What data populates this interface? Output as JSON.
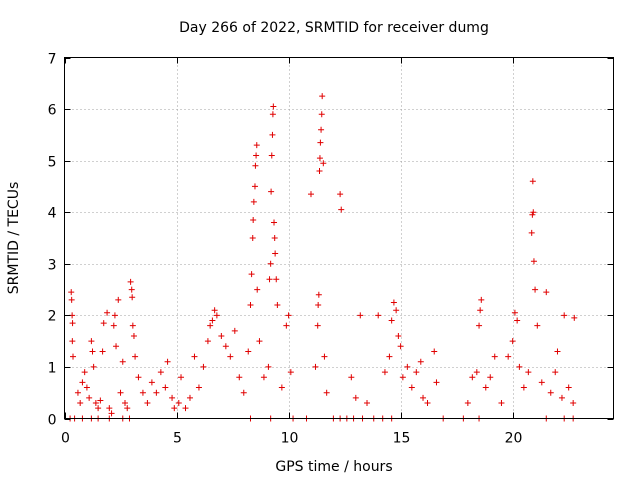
{
  "chart_data": {
    "type": "scatter",
    "title": "Day 266 of 2022, SRMTID for receiver dumg",
    "xlabel": "GPS time / hours",
    "ylabel": "SRMTID / TECUs",
    "xlim": [
      0,
      24.5
    ],
    "ylim": [
      0,
      7
    ],
    "xticks": [
      0,
      5,
      10,
      15,
      20
    ],
    "yticks": [
      0,
      1,
      2,
      3,
      4,
      5,
      6,
      7
    ],
    "grid": true,
    "marker": "plus",
    "color": "#e00000",
    "series": [
      {
        "name": "SRMTID",
        "points": [
          [
            0.25,
            0.0
          ],
          [
            0.45,
            0.0
          ],
          [
            0.8,
            0.0
          ],
          [
            1.2,
            0.0
          ],
          [
            1.5,
            0.0
          ],
          [
            2.0,
            0.0
          ],
          [
            2.6,
            0.0
          ],
          [
            2.9,
            0.0
          ],
          [
            8.3,
            0.0
          ],
          [
            9.2,
            0.0
          ],
          [
            10.2,
            0.0
          ],
          [
            10.8,
            0.0
          ],
          [
            12.0,
            0.0
          ],
          [
            12.3,
            0.0
          ],
          [
            12.6,
            0.0
          ],
          [
            12.9,
            0.0
          ],
          [
            13.3,
            0.0
          ],
          [
            13.8,
            0.0
          ],
          [
            14.2,
            0.0
          ],
          [
            14.6,
            0.0
          ],
          [
            16.9,
            0.0
          ],
          [
            17.8,
            0.0
          ],
          [
            18.5,
            0.0
          ],
          [
            21.5,
            0.0
          ],
          [
            22.3,
            0.0
          ],
          [
            22.7,
            0.0
          ],
          [
            0.3,
            2.45
          ],
          [
            0.32,
            2.3
          ],
          [
            0.34,
            2.0
          ],
          [
            0.36,
            1.85
          ],
          [
            0.35,
            1.5
          ],
          [
            0.38,
            1.2
          ],
          [
            0.6,
            0.5
          ],
          [
            0.7,
            0.3
          ],
          [
            0.8,
            0.7
          ],
          [
            0.9,
            0.9
          ],
          [
            1.0,
            0.6
          ],
          [
            1.1,
            0.4
          ],
          [
            1.2,
            1.5
          ],
          [
            1.25,
            1.3
          ],
          [
            1.3,
            1.0
          ],
          [
            1.4,
            0.3
          ],
          [
            1.5,
            0.2
          ],
          [
            1.6,
            0.35
          ],
          [
            1.7,
            1.3
          ],
          [
            1.75,
            1.85
          ],
          [
            1.9,
            2.05
          ],
          [
            2.0,
            0.2
          ],
          [
            2.1,
            0.1
          ],
          [
            2.2,
            1.8
          ],
          [
            2.25,
            2.0
          ],
          [
            2.3,
            1.4
          ],
          [
            2.4,
            2.3
          ],
          [
            2.5,
            0.5
          ],
          [
            2.6,
            1.1
          ],
          [
            2.7,
            0.3
          ],
          [
            2.8,
            0.2
          ],
          [
            2.95,
            2.65
          ],
          [
            3.0,
            2.5
          ],
          [
            3.02,
            2.35
          ],
          [
            3.05,
            1.8
          ],
          [
            3.1,
            1.6
          ],
          [
            3.15,
            1.2
          ],
          [
            3.3,
            0.8
          ],
          [
            3.5,
            0.5
          ],
          [
            3.7,
            0.3
          ],
          [
            3.9,
            0.7
          ],
          [
            4.1,
            0.5
          ],
          [
            4.3,
            0.9
          ],
          [
            4.5,
            0.6
          ],
          [
            4.6,
            1.1
          ],
          [
            4.8,
            0.4
          ],
          [
            4.9,
            0.2
          ],
          [
            5.1,
            0.3
          ],
          [
            5.2,
            0.8
          ],
          [
            5.4,
            0.2
          ],
          [
            5.6,
            0.4
          ],
          [
            5.8,
            1.2
          ],
          [
            6.0,
            0.6
          ],
          [
            6.2,
            1.0
          ],
          [
            6.4,
            1.5
          ],
          [
            6.5,
            1.8
          ],
          [
            6.6,
            1.9
          ],
          [
            6.7,
            2.1
          ],
          [
            6.8,
            2.0
          ],
          [
            7.0,
            1.6
          ],
          [
            7.2,
            1.4
          ],
          [
            7.4,
            1.2
          ],
          [
            7.6,
            1.7
          ],
          [
            7.8,
            0.8
          ],
          [
            8.0,
            0.5
          ],
          [
            8.2,
            1.3
          ],
          [
            8.3,
            2.2
          ],
          [
            8.35,
            2.8
          ],
          [
            8.4,
            3.5
          ],
          [
            8.42,
            3.85
          ],
          [
            8.45,
            4.2
          ],
          [
            8.5,
            4.5
          ],
          [
            8.52,
            4.9
          ],
          [
            8.55,
            5.1
          ],
          [
            8.58,
            5.3
          ],
          [
            8.6,
            2.5
          ],
          [
            8.7,
            1.5
          ],
          [
            8.9,
            0.8
          ],
          [
            9.1,
            1.0
          ],
          [
            9.15,
            2.7
          ],
          [
            9.2,
            3.0
          ],
          [
            9.22,
            4.4
          ],
          [
            9.25,
            5.1
          ],
          [
            9.28,
            5.5
          ],
          [
            9.3,
            5.9
          ],
          [
            9.32,
            6.05
          ],
          [
            9.35,
            3.8
          ],
          [
            9.38,
            3.5
          ],
          [
            9.4,
            3.2
          ],
          [
            9.45,
            2.7
          ],
          [
            9.5,
            2.2
          ],
          [
            9.7,
            0.6
          ],
          [
            9.9,
            1.8
          ],
          [
            10.0,
            2.0
          ],
          [
            10.1,
            0.9
          ],
          [
            11.0,
            4.35
          ],
          [
            11.2,
            1.0
          ],
          [
            11.3,
            1.8
          ],
          [
            11.32,
            2.2
          ],
          [
            11.35,
            2.4
          ],
          [
            11.38,
            4.8
          ],
          [
            11.4,
            5.05
          ],
          [
            11.42,
            5.35
          ],
          [
            11.45,
            5.6
          ],
          [
            11.48,
            5.9
          ],
          [
            11.5,
            6.25
          ],
          [
            11.55,
            4.95
          ],
          [
            11.6,
            1.2
          ],
          [
            11.7,
            0.5
          ],
          [
            12.3,
            4.35
          ],
          [
            12.35,
            4.05
          ],
          [
            12.8,
            0.8
          ],
          [
            13.0,
            0.4
          ],
          [
            13.2,
            2.0
          ],
          [
            13.5,
            0.3
          ],
          [
            14.0,
            2.0
          ],
          [
            14.3,
            0.9
          ],
          [
            14.5,
            1.2
          ],
          [
            14.6,
            1.9
          ],
          [
            14.7,
            2.25
          ],
          [
            14.8,
            2.1
          ],
          [
            14.9,
            1.6
          ],
          [
            15.0,
            1.4
          ],
          [
            15.1,
            0.8
          ],
          [
            15.3,
            1.0
          ],
          [
            15.5,
            0.6
          ],
          [
            15.7,
            0.9
          ],
          [
            15.9,
            1.1
          ],
          [
            16.0,
            0.4
          ],
          [
            16.2,
            0.3
          ],
          [
            16.5,
            1.3
          ],
          [
            16.6,
            0.7
          ],
          [
            18.0,
            0.3
          ],
          [
            18.2,
            0.8
          ],
          [
            18.4,
            0.9
          ],
          [
            18.5,
            1.8
          ],
          [
            18.55,
            2.1
          ],
          [
            18.6,
            2.3
          ],
          [
            18.8,
            0.6
          ],
          [
            19.0,
            0.8
          ],
          [
            19.2,
            1.2
          ],
          [
            19.5,
            0.3
          ],
          [
            19.8,
            1.2
          ],
          [
            20.0,
            1.5
          ],
          [
            20.1,
            2.05
          ],
          [
            20.2,
            1.9
          ],
          [
            20.3,
            1.0
          ],
          [
            20.5,
            0.6
          ],
          [
            20.7,
            0.9
          ],
          [
            20.85,
            3.6
          ],
          [
            20.88,
            3.95
          ],
          [
            20.9,
            4.6
          ],
          [
            20.92,
            4.0
          ],
          [
            20.95,
            3.05
          ],
          [
            21.0,
            2.5
          ],
          [
            21.1,
            1.8
          ],
          [
            21.3,
            0.7
          ],
          [
            21.5,
            2.45
          ],
          [
            21.7,
            0.5
          ],
          [
            21.9,
            0.9
          ],
          [
            22.0,
            1.3
          ],
          [
            22.2,
            0.4
          ],
          [
            22.3,
            2.0
          ],
          [
            22.5,
            0.6
          ],
          [
            22.7,
            0.3
          ],
          [
            22.75,
            1.95
          ]
        ]
      }
    ]
  }
}
